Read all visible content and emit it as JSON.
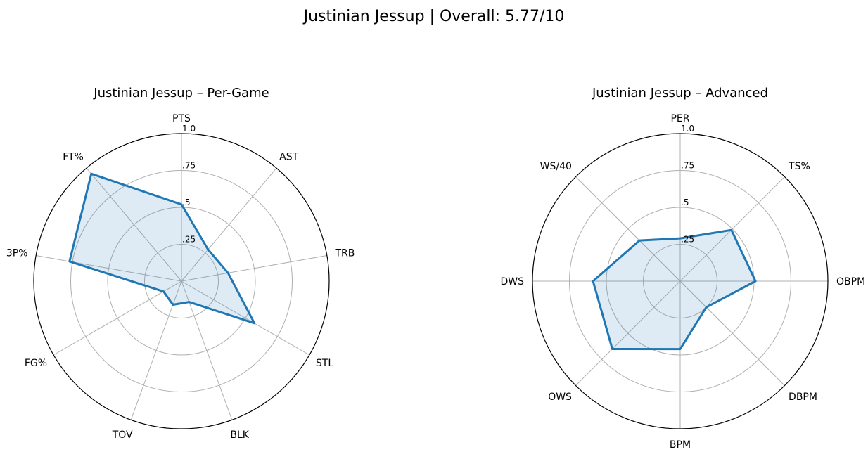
{
  "figure": {
    "suptitle": "Justinian Jessup | Overall: 5.77/10"
  },
  "chart_data": [
    {
      "type": "radar",
      "title": "Justinian Jessup – Per-Game",
      "categories": [
        "PTS",
        "AST",
        "TRB",
        "STL",
        "BLK",
        "TOV",
        "FG%",
        "3P%",
        "FT%"
      ],
      "series": [
        {
          "values": [
            0.52,
            0.28,
            0.32,
            0.57,
            0.15,
            0.17,
            0.14,
            0.77,
            0.95
          ]
        }
      ],
      "rlim": [
        0,
        1
      ],
      "rticks": [
        0.25,
        0.5,
        0.75,
        1.0
      ],
      "rtick_labels": [
        ".25",
        ".5",
        ".75",
        "1.0"
      ],
      "color": "#1f77b4"
    },
    {
      "type": "radar",
      "title": "Justinian Jessup – Advanced",
      "categories": [
        "PER",
        "TS%",
        "OBPM",
        "DBPM",
        "BPM",
        "OWS",
        "DWS",
        "WS/40"
      ],
      "series": [
        {
          "values": [
            0.29,
            0.49,
            0.51,
            0.25,
            0.46,
            0.65,
            0.59,
            0.39
          ]
        }
      ],
      "rlim": [
        0,
        1
      ],
      "rticks": [
        0.25,
        0.5,
        0.75,
        1.0
      ],
      "rtick_labels": [
        ".25",
        ".5",
        ".75",
        "1.0"
      ],
      "color": "#1f77b4"
    }
  ]
}
